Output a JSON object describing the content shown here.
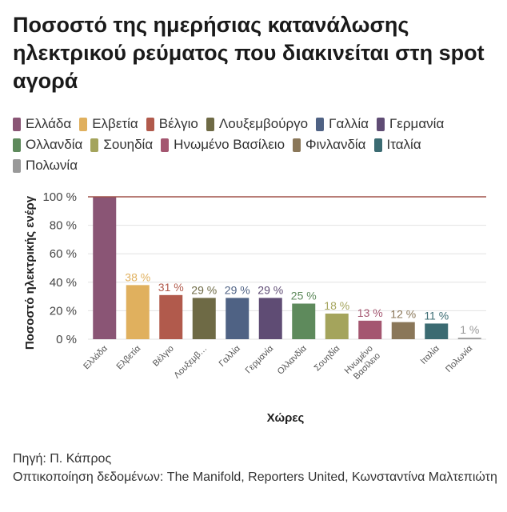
{
  "title": "Ποσοστό της ημερήσιας κατανάλωσης ηλεκτρικού ρεύματος που διακινείται στη spot αγορά",
  "legend": [
    {
      "label": "Ελλάδα",
      "color": "#8a5575"
    },
    {
      "label": "Ελβετία",
      "color": "#e0b05e"
    },
    {
      "label": "Βέλγιο",
      "color": "#b15a4c"
    },
    {
      "label": "Λουξεμβούργο",
      "color": "#6e6a45"
    },
    {
      "label": "Γαλλία",
      "color": "#4f6284"
    },
    {
      "label": "Γερμανία",
      "color": "#5f4c74"
    },
    {
      "label": "Ολλανδία",
      "color": "#5e8a5c"
    },
    {
      "label": "Σουηδία",
      "color": "#a4a45c"
    },
    {
      "label": "Ηνωμένο Βασίλειο",
      "color": "#a45670"
    },
    {
      "label": "Φινλανδία",
      "color": "#8a7759"
    },
    {
      "label": "Ιταλία",
      "color": "#3b6b72"
    },
    {
      "label": "Πολωνία",
      "color": "#999999"
    }
  ],
  "chart_data": {
    "type": "bar",
    "categories": [
      "Ελλάδα",
      "Ελβετία",
      "Βέλγιο",
      "Λουξεμβ…",
      "Γαλλία",
      "Γερμανία",
      "Ολλανδία",
      "Σουηδία",
      "Ηνωμένο Βασίλειο",
      "",
      "Ιταλία",
      "Πολωνία"
    ],
    "values": [
      100,
      38,
      31,
      29,
      29,
      29,
      25,
      18,
      13,
      12,
      11,
      1
    ],
    "data_labels": [
      "",
      "38 %",
      "31 %",
      "29 %",
      "29 %",
      "29 %",
      "25 %",
      "18 %",
      "13 %",
      "12 %",
      "11 %",
      "1 %"
    ],
    "colors": [
      "#8a5575",
      "#e0b05e",
      "#b15a4c",
      "#6e6a45",
      "#4f6284",
      "#5f4c74",
      "#5e8a5c",
      "#a4a45c",
      "#a45670",
      "#8a7759",
      "#3b6b72",
      "#999999"
    ],
    "yticks": [
      "0 %",
      "20 %",
      "40 %",
      "60 %",
      "80 %",
      "100 %"
    ],
    "ylim": [
      0,
      100
    ],
    "reference_line": 100,
    "reference_color": "#a0524a",
    "xlabel": "Χώρες",
    "ylabel": "Ποσοστό ηλεκτρικής ενέργ"
  },
  "source": {
    "line1": "Πηγή: Π. Κάπρος",
    "line2": "Οπτικοποίηση δεδομένων: The Manifold, Reporters United, Κωνσταντίνα Μαλτεπιώτη"
  }
}
